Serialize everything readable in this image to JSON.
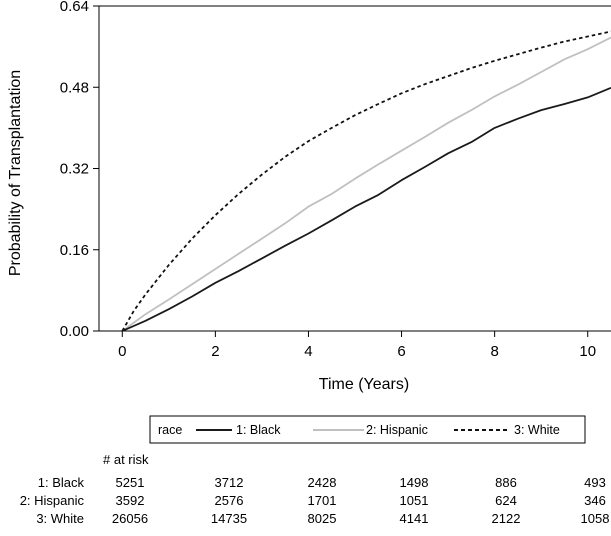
{
  "chart_data": {
    "type": "line",
    "xlabel": "Time (Years)",
    "ylabel": "Probability of Transplantation",
    "xlim": [
      -0.5,
      10.5
    ],
    "ylim": [
      0,
      0.64
    ],
    "x_ticks": [
      0,
      2,
      4,
      6,
      8,
      10
    ],
    "x_tick_labels": [
      "0",
      "2",
      "4",
      "6",
      "8",
      "10"
    ],
    "y_ticks": [
      0,
      0.16,
      0.32,
      0.48,
      0.64
    ],
    "y_tick_labels": [
      "0.00",
      "0.16",
      "0.32",
      "0.48",
      "0.64"
    ],
    "grid": false,
    "legend": {
      "title": "race",
      "placement": "bottom",
      "entries": [
        "1: Black",
        "2: Hispanic",
        "3: White"
      ]
    },
    "series": [
      {
        "name": "1: Black",
        "color": "#1a1a1a",
        "style": "solid",
        "x": [
          0,
          0.5,
          1,
          1.5,
          2,
          2.5,
          3,
          3.5,
          4,
          4.5,
          5,
          5.5,
          6,
          6.5,
          7,
          7.5,
          8,
          8.5,
          9,
          9.5,
          10,
          10.5
        ],
        "y": [
          0,
          0.02,
          0.043,
          0.068,
          0.095,
          0.118,
          0.143,
          0.168,
          0.192,
          0.218,
          0.245,
          0.268,
          0.297,
          0.323,
          0.35,
          0.372,
          0.4,
          0.418,
          0.435,
          0.447,
          0.46,
          0.479
        ]
      },
      {
        "name": "2: Hispanic",
        "color": "#c0c0c0",
        "style": "solid",
        "x": [
          0,
          0.5,
          1,
          1.5,
          2,
          2.5,
          3,
          3.5,
          4,
          4.5,
          5,
          5.5,
          6,
          6.5,
          7,
          7.5,
          8,
          8.5,
          9,
          9.5,
          10,
          10.5
        ],
        "y": [
          0,
          0.033,
          0.062,
          0.092,
          0.122,
          0.152,
          0.182,
          0.212,
          0.245,
          0.27,
          0.3,
          0.328,
          0.355,
          0.382,
          0.41,
          0.435,
          0.462,
          0.485,
          0.51,
          0.535,
          0.555,
          0.578
        ]
      },
      {
        "name": "3: White",
        "color": "#111111",
        "style": "dashed",
        "x": [
          0,
          0.25,
          0.5,
          1,
          1.5,
          2,
          2.5,
          3,
          3.5,
          4,
          4.5,
          5,
          5.5,
          6,
          6.5,
          7,
          7.5,
          8,
          8.5,
          9,
          9.5,
          10,
          10.5
        ],
        "y": [
          0,
          0.04,
          0.072,
          0.13,
          0.182,
          0.228,
          0.27,
          0.308,
          0.343,
          0.374,
          0.4,
          0.425,
          0.447,
          0.468,
          0.486,
          0.502,
          0.518,
          0.532,
          0.545,
          0.558,
          0.57,
          0.58,
          0.59
        ]
      }
    ],
    "at_risk": {
      "header": "# at risk",
      "rows": [
        {
          "label": "1: Black",
          "values": [
            "5251",
            "3712",
            "2428",
            "1498",
            "886",
            "493"
          ]
        },
        {
          "label": "2: Hispanic",
          "values": [
            "3592",
            "2576",
            "1701",
            "1051",
            "624",
            "346"
          ]
        },
        {
          "label": "3: White",
          "values": [
            "26056",
            "14735",
            "8025",
            "4141",
            "2122",
            "1058"
          ]
        }
      ]
    }
  }
}
